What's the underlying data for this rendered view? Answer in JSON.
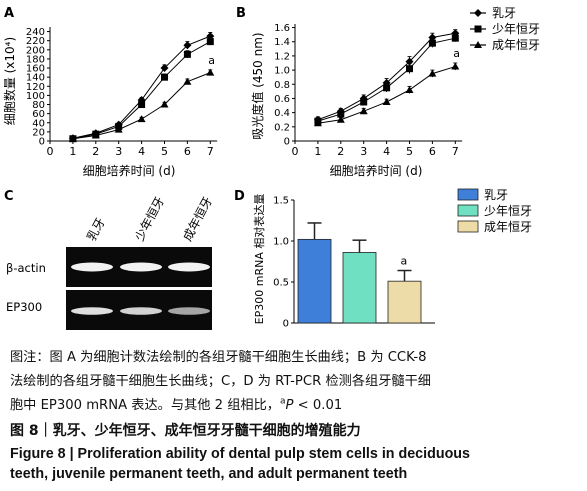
{
  "chart_data": [
    {
      "panel": "A",
      "type": "line",
      "x": [
        1,
        2,
        3,
        4,
        5,
        6,
        7
      ],
      "xlabel": "细胞培养时间 (d)",
      "ylabel": "细胞数量 (x10⁴)",
      "ylim": [
        0,
        250
      ],
      "yticks": [
        0,
        20,
        40,
        60,
        80,
        100,
        120,
        140,
        160,
        180,
        200,
        220,
        240
      ],
      "series": [
        {
          "name": "乳牙",
          "values": [
            6,
            17,
            36,
            90,
            160,
            210,
            230
          ],
          "err": [
            2,
            2,
            3,
            5,
            7,
            8,
            8
          ]
        },
        {
          "name": "少年恒牙",
          "values": [
            5,
            15,
            32,
            80,
            140,
            190,
            218
          ],
          "err": [
            2,
            2,
            3,
            5,
            7,
            8,
            8
          ]
        },
        {
          "name": "成年恒牙",
          "values": [
            5,
            12,
            25,
            48,
            80,
            130,
            150
          ],
          "err": [
            2,
            2,
            3,
            4,
            5,
            6,
            6
          ]
        }
      ],
      "annotation": "a"
    },
    {
      "panel": "B",
      "type": "line",
      "x": [
        1,
        2,
        3,
        4,
        5,
        6,
        7
      ],
      "xlabel": "细胞培养时间 (d)",
      "ylabel": "吸光度值 (450 nm)",
      "ylim": [
        0,
        1.65
      ],
      "yticks": [
        "0",
        "0.2",
        "0.4",
        "0.6",
        "0.8",
        "1.0",
        "1.2",
        "1.4",
        "1.6"
      ],
      "series": [
        {
          "name": "乳牙",
          "values": [
            0.3,
            0.42,
            0.6,
            0.82,
            1.12,
            1.46,
            1.52
          ],
          "err": [
            0.04,
            0.04,
            0.05,
            0.06,
            0.07,
            0.06,
            0.05
          ]
        },
        {
          "name": "少年恒牙",
          "values": [
            0.28,
            0.38,
            0.55,
            0.75,
            1.02,
            1.38,
            1.45
          ],
          "err": [
            0.04,
            0.04,
            0.05,
            0.06,
            0.07,
            0.06,
            0.05
          ]
        },
        {
          "name": "成年恒牙",
          "values": [
            0.25,
            0.3,
            0.42,
            0.55,
            0.72,
            0.95,
            1.05
          ],
          "err": [
            0.03,
            0.03,
            0.04,
            0.04,
            0.05,
            0.05,
            0.05
          ]
        }
      ],
      "annotation": "a"
    },
    {
      "panel": "D",
      "type": "bar",
      "categories": [
        "乳牙",
        "少年恒牙",
        "成年恒牙"
      ],
      "values": [
        1.02,
        0.86,
        0.51
      ],
      "err": [
        0.2,
        0.15,
        0.13
      ],
      "colors": [
        "#3e7fd9",
        "#6fe0c2",
        "#eddca7"
      ],
      "ylabel": "EP300 mRNA 相对表达量",
      "ylim": [
        0,
        1.5
      ],
      "yticks": [
        "0",
        "0.5",
        "1.0",
        "1.5"
      ],
      "annotation": "a"
    }
  ],
  "panel_c": {
    "label": "C",
    "lanes": [
      "乳牙",
      "少年恒牙",
      "成年恒牙"
    ],
    "rows": [
      {
        "name": "β-actin",
        "intensity": [
          1.0,
          1.0,
          1.0
        ]
      },
      {
        "name": "EP300",
        "intensity": [
          0.85,
          0.75,
          0.4
        ]
      }
    ]
  },
  "legend_ab": [
    "乳牙",
    "少年恒牙",
    "成年恒牙"
  ],
  "legend_d": [
    "乳牙",
    "少年恒牙",
    "成年恒牙"
  ],
  "caption": {
    "line1": "图注：图 A 为细胞计数法绘制的各组牙髓干细胞生长曲线；B 为 CCK-8",
    "line2": "法绘制的各组牙髓干细胞生长曲线；C，D 为 RT-PCR 检测各组牙髓干细",
    "line3_pre": "胞中 EP300 mRNA 表达。与其他 2 组相比，",
    "line3_sup": "a",
    "line3_p": "P",
    "line3_post": " < 0.01",
    "title": "图 8｜乳牙、少年恒牙、成年恒牙牙髓干细胞的增殖能力",
    "en1": "Figure 8 | Proliferation ability of dental pulp stem cells in deciduous",
    "en2": "teeth, juvenile permanent teeth, and adult permanent teeth"
  }
}
